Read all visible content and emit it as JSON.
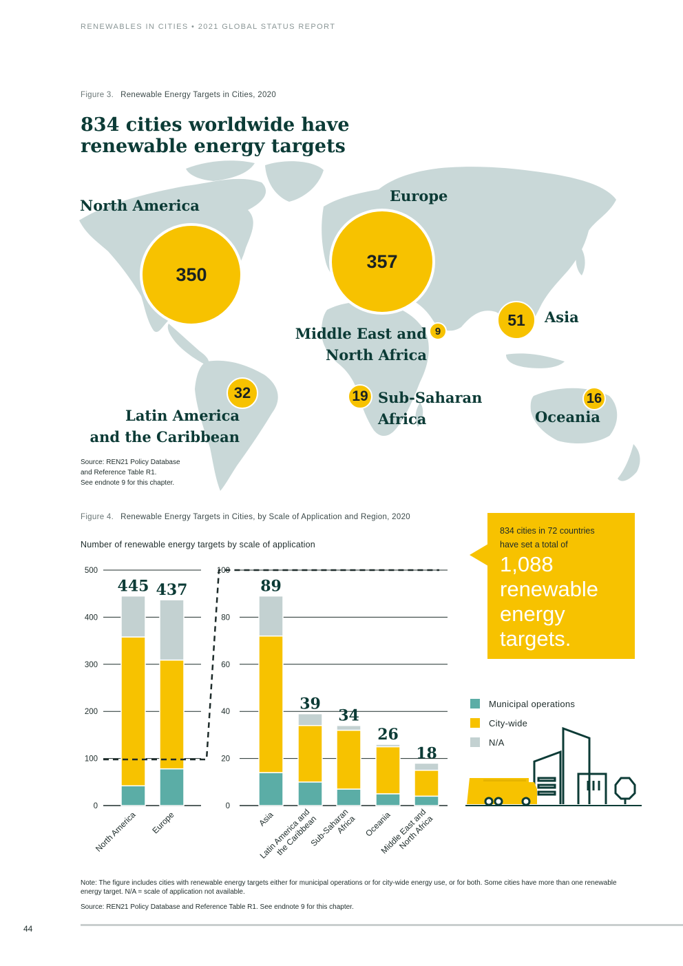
{
  "header": "RENEWABLES IN CITIES • 2021 GLOBAL STATUS REPORT",
  "figure3": {
    "number": "Figure 3.",
    "title": "Renewable Energy Targets in Cities, 2020",
    "headline_line1": "834 cities worldwide have",
    "headline_line2": "renewable energy targets",
    "regions": [
      {
        "name": "North America",
        "value": "350"
      },
      {
        "name": "Europe",
        "value": "357"
      },
      {
        "name": "Middle East and North Africa",
        "line1": "Middle East and",
        "line2": "North Africa",
        "value": "9"
      },
      {
        "name": "Asia",
        "value": "51"
      },
      {
        "name": "Latin America and the Caribbean",
        "line1": "Latin America",
        "line2": "and the Caribbean",
        "value": "32"
      },
      {
        "name": "Sub-Saharan Africa",
        "line1": "Sub-Saharan",
        "line2": "Africa",
        "value": "19"
      },
      {
        "name": "Oceania",
        "value": "16"
      }
    ],
    "source_line1": "Source: REN21 Policy Database",
    "source_line2": "and Reference Table R1.",
    "source_line3": "See endnote 9 for this chapter."
  },
  "figure4": {
    "number": "Figure 4.",
    "title": "Renewable Energy Targets in Cities, by Scale of Application and Region, 2020",
    "axis_note": "Number of renewable energy targets by scale of application"
  },
  "callout": {
    "line1": "834 cities in 72 countries",
    "line2": "have set a total of",
    "big1": "1,088",
    "big2": "renewable",
    "big3": "energy",
    "big4": "targets."
  },
  "legend": [
    {
      "label": "Municipal operations",
      "color": "#5bada6"
    },
    {
      "label": "City-wide",
      "color": "#f7c200"
    },
    {
      "label": "N/A",
      "color": "#c3d1d1"
    }
  ],
  "chart_data": [
    {
      "type": "bar",
      "stacked": true,
      "categories": [
        "North America",
        "Europe"
      ],
      "totals": [
        445,
        437
      ],
      "series": [
        {
          "name": "Municipal operations",
          "values": [
            42,
            78
          ]
        },
        {
          "name": "City-wide",
          "values": [
            316,
            231
          ]
        },
        {
          "name": "N/A",
          "values": [
            87,
            128
          ]
        }
      ],
      "ylim": [
        0,
        500
      ],
      "yticks": [
        "0",
        "100",
        "200",
        "300",
        "400",
        "500"
      ]
    },
    {
      "type": "bar",
      "stacked": true,
      "categories": [
        "Asia",
        "Latin America and the Caribbean",
        "Sub-Saharan Africa",
        "Oceania",
        "Middle East and North Africa"
      ],
      "category_lines": [
        [
          "Asia"
        ],
        [
          "Latin America and",
          "the Caribbean"
        ],
        [
          "Sub-Saharan",
          "Africa"
        ],
        [
          "Oceania"
        ],
        [
          "Middle East and",
          "North Africa"
        ]
      ],
      "totals": [
        89,
        39,
        34,
        26,
        18
      ],
      "series": [
        {
          "name": "Municipal operations",
          "values": [
            14,
            10,
            7,
            5,
            4
          ]
        },
        {
          "name": "City-wide",
          "values": [
            58,
            24,
            25,
            20,
            11
          ]
        },
        {
          "name": "N/A",
          "values": [
            17,
            5,
            2,
            1,
            3
          ]
        }
      ],
      "ylim": [
        0,
        100
      ],
      "yticks": [
        "0",
        "20",
        "40",
        "60",
        "80",
        "100"
      ]
    }
  ],
  "note": "Note: The figure includes cities with renewable energy targets either for municipal operations or for city-wide energy use, or for both. Some cities have more than one renewable energy target. N/A = scale of application not available.",
  "source2": "Source: REN21 Policy Database and Reference Table R1. See endnote 9 for this chapter.",
  "page_number": "44"
}
